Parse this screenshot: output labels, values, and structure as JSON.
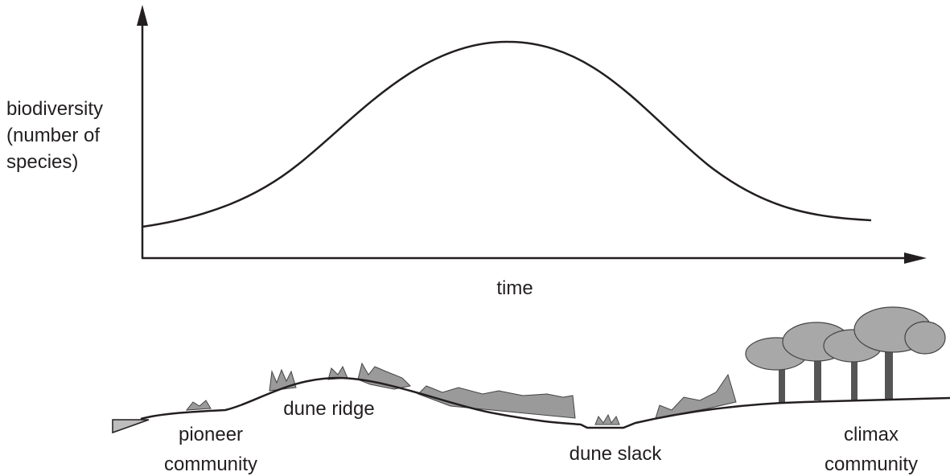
{
  "y_axis_label": [
    "biodiversity",
    "(number of",
    "species)"
  ],
  "x_axis_label": "time",
  "labels": {
    "pioneer": [
      "pioneer",
      "community"
    ],
    "ridge": "dune ridge",
    "slack": "dune slack",
    "climax": [
      "climax",
      "community"
    ]
  }
}
